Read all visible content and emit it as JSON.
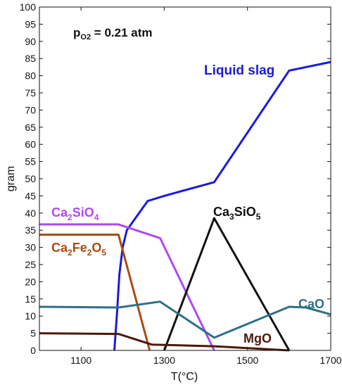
{
  "chart_data": {
    "type": "line",
    "annotation": {
      "main": "p",
      "sub": "O2",
      "rest": " = 0.21 atm"
    },
    "xlabel": "T(°C)",
    "ylabel": "gram",
    "xlim": [
      1000,
      1700
    ],
    "ylim": [
      0,
      100
    ],
    "x_ticks": [
      1100,
      1300,
      1500,
      1700
    ],
    "x_tick_labels": [
      "1100",
      "1300",
      "1500",
      "1700"
    ],
    "y_ticks": [
      0,
      5,
      10,
      15,
      20,
      25,
      30,
      35,
      40,
      45,
      50,
      55,
      60,
      65,
      70,
      75,
      80,
      85,
      90,
      95,
      100
    ],
    "y_tick_labels": [
      "0",
      "5",
      "10",
      "15",
      "20",
      "25",
      "30",
      "35",
      "40",
      "45",
      "50",
      "55",
      "60",
      "65",
      "70",
      "75",
      "80",
      "85",
      "90",
      "95",
      "100"
    ],
    "grid": false,
    "series": [
      {
        "name": "Liquid slag",
        "color": "#1a1adb",
        "points": [
          [
            1180,
            0
          ],
          [
            1186,
            10
          ],
          [
            1192,
            22
          ],
          [
            1200,
            30
          ],
          [
            1210,
            35
          ],
          [
            1260,
            43.5
          ],
          [
            1300,
            45
          ],
          [
            1420,
            49
          ],
          [
            1600,
            81.5
          ],
          [
            1700,
            84
          ]
        ]
      },
      {
        "name": "Ca2SiO4",
        "label_parts": [
          [
            "Ca",
            ""
          ],
          [
            "2",
            "sub"
          ],
          [
            "SiO",
            ""
          ],
          [
            "4",
            "sub"
          ]
        ],
        "color": "#b348f0",
        "points": [
          [
            1000,
            36.7
          ],
          [
            1190,
            36.7
          ],
          [
            1290,
            32.7
          ],
          [
            1420,
            0
          ]
        ]
      },
      {
        "name": "Ca2Fe2O5",
        "label_parts": [
          [
            "Ca",
            ""
          ],
          [
            "2",
            "sub"
          ],
          [
            "Fe",
            ""
          ],
          [
            "2",
            "sub"
          ],
          [
            "O",
            ""
          ],
          [
            "5",
            "sub"
          ]
        ],
        "color": "#a84c12",
        "points": [
          [
            1000,
            33.7
          ],
          [
            1190,
            33.7
          ],
          [
            1265,
            0
          ]
        ]
      },
      {
        "name": "Ca3SiO5",
        "label_parts": [
          [
            "Ca",
            ""
          ],
          [
            "3",
            "sub"
          ],
          [
            "SiO",
            ""
          ],
          [
            "5",
            "sub"
          ]
        ],
        "color": "#111111",
        "points": [
          [
            1300,
            0
          ],
          [
            1420,
            38.5
          ],
          [
            1600,
            0
          ]
        ]
      },
      {
        "name": "CaO",
        "color": "#2e7086",
        "points": [
          [
            1000,
            12.7
          ],
          [
            1190,
            12.5
          ],
          [
            1290,
            14.2
          ],
          [
            1420,
            3.7
          ],
          [
            1600,
            12.7
          ],
          [
            1640,
            12.5
          ],
          [
            1700,
            10.5
          ]
        ]
      },
      {
        "name": "MgO",
        "color": "#4a1a0a",
        "points": [
          [
            1000,
            5
          ],
          [
            1190,
            4.8
          ],
          [
            1270,
            1.7
          ],
          [
            1420,
            1.2
          ],
          [
            1600,
            0
          ]
        ]
      }
    ]
  }
}
